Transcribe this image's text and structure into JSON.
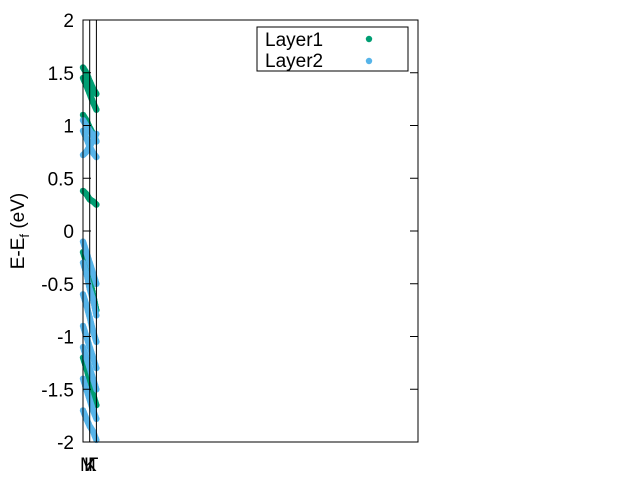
{
  "chart_data": {
    "type": "scatter",
    "title": "",
    "xlabel": "",
    "ylabel": "E-E",
    "ylabel_subscript": "f",
    "ylabel_unit": " (eV)",
    "ylim": [
      -2,
      2
    ],
    "yticks": [
      "2",
      "1.5",
      "1",
      "0.5",
      "0",
      "-0.5",
      "-1",
      "-1.5",
      "-2"
    ],
    "ytick_values": [
      2,
      1.5,
      1,
      0.5,
      0,
      -0.5,
      -1,
      -1.5,
      -2
    ],
    "xtick_labels": [
      "M",
      "K",
      "Γ"
    ],
    "xtick_values": [
      0,
      0.02,
      0.04
    ],
    "xlim": [
      0,
      1
    ],
    "legend_position": "top-right",
    "band_color": "#000000",
    "series": [
      {
        "name": "Layer1",
        "color": "#009e73",
        "bands": [
          {
            "x": [
              0.0,
              0.01,
              0.02,
              0.03,
              0.04
            ],
            "y": [
              1.55,
              1.5,
              1.42,
              1.35,
              1.3
            ]
          },
          {
            "x": [
              0.0,
              0.01,
              0.02,
              0.03,
              0.04
            ],
            "y": [
              1.45,
              1.38,
              1.3,
              1.22,
              1.15
            ]
          },
          {
            "x": [
              0.0,
              0.01,
              0.02,
              0.03,
              0.04
            ],
            "y": [
              1.1,
              1.05,
              0.98,
              0.92,
              0.85
            ]
          },
          {
            "x": [
              0.0,
              0.01,
              0.02,
              0.03,
              0.04
            ],
            "y": [
              0.38,
              0.35,
              0.3,
              0.28,
              0.25
            ]
          },
          {
            "x": [
              0.0,
              0.01,
              0.02,
              0.03,
              0.04
            ],
            "y": [
              -0.2,
              -0.3,
              -0.45,
              -0.6,
              -0.75
            ]
          },
          {
            "x": [
              0.0,
              0.01,
              0.02,
              0.03,
              0.04
            ],
            "y": [
              -1.2,
              -1.3,
              -1.42,
              -1.55,
              -1.65
            ]
          }
        ]
      },
      {
        "name": "Layer2",
        "color": "#56b4e9",
        "bands": [
          {
            "x": [
              0.0,
              0.01,
              0.02,
              0.03,
              0.04
            ],
            "y": [
              1.05,
              1.0,
              0.95,
              0.9,
              0.85
            ]
          },
          {
            "x": [
              0.0,
              0.01,
              0.02,
              0.03,
              0.04
            ],
            "y": [
              0.95,
              0.88,
              0.8,
              0.74,
              0.7
            ]
          },
          {
            "x": [
              0.0,
              0.01,
              0.02,
              0.03,
              0.04
            ],
            "y": [
              0.72,
              0.75,
              0.8,
              0.86,
              0.92
            ]
          },
          {
            "x": [
              0.0,
              0.01,
              0.02,
              0.03,
              0.04
            ],
            "y": [
              -0.1,
              -0.2,
              -0.3,
              -0.4,
              -0.5
            ]
          },
          {
            "x": [
              0.0,
              0.01,
              0.02,
              0.03,
              0.04
            ],
            "y": [
              -0.3,
              -0.4,
              -0.55,
              -0.65,
              -0.8
            ]
          },
          {
            "x": [
              0.0,
              0.01,
              0.02,
              0.03,
              0.04
            ],
            "y": [
              -0.6,
              -0.7,
              -0.82,
              -0.95,
              -1.05
            ]
          },
          {
            "x": [
              0.0,
              0.01,
              0.02,
              0.03,
              0.04
            ],
            "y": [
              -0.9,
              -1.0,
              -1.1,
              -1.2,
              -1.3
            ]
          },
          {
            "x": [
              0.0,
              0.01,
              0.02,
              0.03,
              0.04
            ],
            "y": [
              -1.1,
              -1.2,
              -1.3,
              -1.4,
              -1.5
            ]
          },
          {
            "x": [
              0.0,
              0.01,
              0.02,
              0.03,
              0.04
            ],
            "y": [
              -1.4,
              -1.5,
              -1.6,
              -1.7,
              -1.78
            ]
          },
          {
            "x": [
              0.0,
              0.01,
              0.02,
              0.03,
              0.04
            ],
            "y": [
              -1.7,
              -1.78,
              -1.85,
              -1.9,
              -1.98
            ]
          }
        ]
      }
    ]
  }
}
